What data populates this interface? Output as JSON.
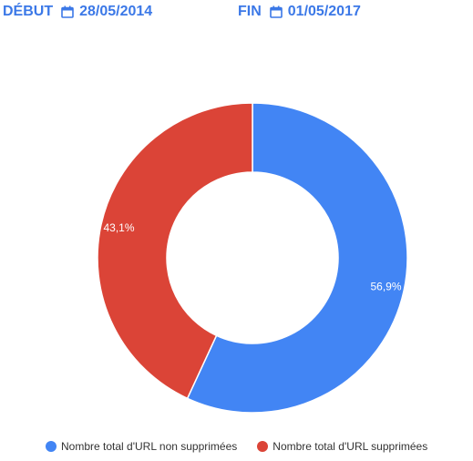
{
  "date_range": {
    "start_label": "DÉBUT",
    "start_value": "28/05/2014",
    "end_label": "FIN",
    "end_value": "01/05/2017",
    "icon": "calendar-icon",
    "accent_color": "#3b78e7"
  },
  "chart_data": {
    "type": "pie",
    "subtype": "donut",
    "title": "",
    "legend_position": "bottom",
    "slices": [
      {
        "name": "Nombre total d'URL non supprimées",
        "value": 56.9,
        "label": "56,9%",
        "color": "#4285f4"
      },
      {
        "name": "Nombre total d'URL supprimées",
        "value": 43.1,
        "label": "43,1%",
        "color": "#db4437"
      }
    ]
  }
}
